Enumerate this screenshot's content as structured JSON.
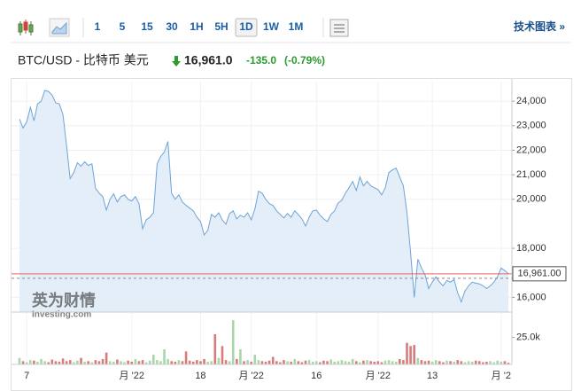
{
  "toolbar": {
    "intervals": [
      "1",
      "5",
      "15",
      "30",
      "1H",
      "5H",
      "1D",
      "1W",
      "1M"
    ],
    "selected": 6,
    "link": "技术图表 »"
  },
  "header": {
    "symbol": "BTC/USD - 比特币 美元",
    "price": "16,961.0",
    "change": "-135.0",
    "change_pct": "(-0.79%)"
  },
  "chart_data": [
    {
      "type": "area",
      "color": "#6fa3d6",
      "fill": "#e4eef8",
      "grid": true,
      "watermark": "英为财情",
      "watermark_sub": "Investing.com",
      "ylim": [
        15400,
        24800
      ],
      "yticks": [
        {
          "value": 24000,
          "label": "24,000"
        },
        {
          "value": 23000,
          "label": "23,000"
        },
        {
          "value": 22000,
          "label": "22,000"
        },
        {
          "value": 21000,
          "label": "21,000"
        },
        {
          "value": 20000,
          "label": "20,000"
        },
        {
          "value": 18000,
          "label": "18,000"
        },
        {
          "value": 16000,
          "label": "16,000"
        }
      ],
      "last_price": {
        "value": 16961,
        "label": "16,961.00"
      },
      "last_price_color": "#e06666",
      "values": [
        23270,
        22910,
        23160,
        23750,
        23200,
        23890,
        24000,
        24440,
        24400,
        24250,
        23930,
        23890,
        23450,
        22180,
        20840,
        21090,
        21490,
        21350,
        21530,
        21380,
        21450,
        20440,
        20250,
        20110,
        19560,
        20000,
        20220,
        19890,
        20110,
        20180,
        20000,
        19930,
        20110,
        19820,
        18800,
        19160,
        19270,
        19450,
        21450,
        21750,
        21930,
        22360,
        20250,
        20000,
        20180,
        19890,
        19750,
        19640,
        19530,
        19270,
        19090,
        18550,
        18730,
        19380,
        19270,
        19450,
        19160,
        18980,
        19420,
        19530,
        19200,
        19350,
        19270,
        19450,
        19160,
        19600,
        20330,
        20250,
        20000,
        19820,
        19750,
        19530,
        19380,
        19240,
        19420,
        19270,
        19530,
        19380,
        19200,
        18910,
        19270,
        19530,
        19560,
        19350,
        19200,
        19090,
        19380,
        19530,
        19850,
        19960,
        20250,
        20470,
        20730,
        20360,
        20910,
        20550,
        20730,
        20550,
        20470,
        20400,
        20180,
        20470,
        21090,
        21200,
        21270,
        20910,
        20550,
        19450,
        17820,
        16000,
        17560,
        17200,
        16910,
        16360,
        16620,
        16840,
        16620,
        16470,
        16690,
        16620,
        16730,
        16180,
        15820,
        16250,
        16470,
        16620,
        16580,
        16550,
        16470,
        16360,
        16470,
        16620,
        16840,
        17200,
        17090,
        16961
      ]
    },
    {
      "type": "bar",
      "up_color": "#a9d6a9",
      "down_color": "#d77b7b",
      "ylim": [
        0,
        46000
      ],
      "yticks": [
        {
          "value": 25000,
          "label": "25.0k"
        }
      ],
      "categories": [
        null,
        null,
        "7",
        null,
        null,
        null,
        null,
        null,
        null,
        null,
        null,
        null,
        null,
        null,
        null,
        null,
        null,
        null,
        null,
        null,
        null,
        null,
        null,
        null,
        null,
        null,
        null,
        null,
        null,
        null,
        null,
        "月 '22",
        null,
        null,
        null,
        null,
        null,
        null,
        null,
        null,
        null,
        null,
        null,
        null,
        null,
        null,
        null,
        null,
        null,
        null,
        "18",
        null,
        null,
        null,
        null,
        null,
        null,
        null,
        null,
        null,
        null,
        null,
        null,
        null,
        "月 '22",
        null,
        null,
        null,
        null,
        null,
        null,
        null,
        null,
        null,
        null,
        null,
        null,
        null,
        null,
        null,
        null,
        null,
        "16",
        null,
        null,
        null,
        null,
        null,
        null,
        null,
        null,
        null,
        null,
        null,
        null,
        null,
        null,
        null,
        null,
        "月 '22",
        null,
        null,
        null,
        null,
        null,
        null,
        null,
        null,
        null,
        null,
        null,
        null,
        null,
        null,
        "13",
        null,
        null,
        null,
        null,
        null,
        null,
        null,
        null,
        null,
        null,
        null,
        null,
        null,
        null,
        null,
        null,
        null,
        null,
        "月 '2",
        null,
        null
      ],
      "values": [
        6000,
        3000,
        2000,
        4000,
        3500,
        2500,
        5000,
        3000,
        2000,
        4500,
        3000,
        2500,
        5500,
        3000,
        4000,
        2000,
        3500,
        6000,
        2500,
        3000,
        2000,
        4000,
        3000,
        5000,
        11000,
        3000,
        2500,
        4500,
        3000,
        2000,
        3500,
        2500,
        5000,
        3000,
        4000,
        2000,
        3500,
        9000,
        4000,
        3000,
        14000,
        5000,
        3000,
        2500,
        4000,
        3000,
        12000,
        3500,
        2500,
        4000,
        3000,
        5000,
        2500,
        3000,
        28000,
        6000,
        17000,
        4000,
        3000,
        41000,
        5000,
        14000,
        3000,
        4000,
        2500,
        9000,
        4000,
        3000,
        2500,
        3500,
        7000,
        3000,
        2000,
        4000,
        3000,
        2500,
        5000,
        3000,
        2000,
        3500,
        4000,
        2500,
        3000,
        2000,
        3500,
        3000,
        4500,
        2500,
        3000,
        4000,
        3000,
        2500,
        5000,
        3000,
        2000,
        3500,
        4000,
        3000,
        2500,
        3000,
        2000,
        3500,
        4000,
        3000,
        2500,
        5000,
        4000,
        20000,
        17000,
        18000,
        6000,
        4000,
        3000,
        3500,
        2500,
        4000,
        3000,
        2000,
        3500,
        3000,
        2500,
        4000,
        3000,
        2000,
        3000,
        2500,
        3500,
        3000,
        2000,
        2500,
        3000,
        2000,
        3500,
        2500,
        3000,
        1500
      ]
    }
  ]
}
